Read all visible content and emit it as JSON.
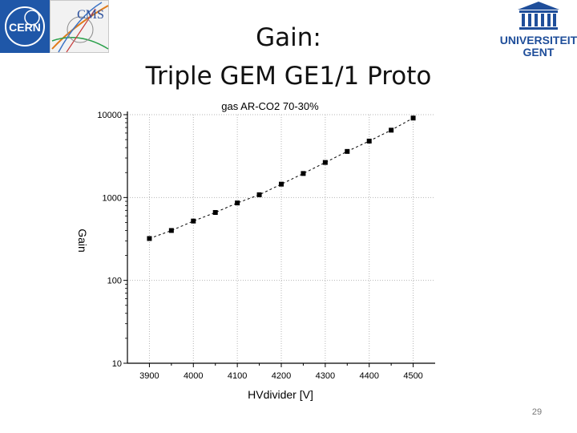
{
  "slide": {
    "title_line1": "Gain:",
    "title_line2": "Triple GEM GE1/1 Proto",
    "page_number": "29"
  },
  "logos": {
    "cern": {
      "text": "CERN",
      "color": "#1f57a8"
    },
    "cms": {
      "text": "CMS"
    },
    "ugent": {
      "line1": "UNIVERSITEIT",
      "line2": "GENT",
      "color": "#1f4e9a"
    }
  },
  "chart_data": {
    "type": "scatter",
    "title": "gas AR-CO2 70-30%",
    "xlabel": "HVdivider [V]",
    "ylabel": "Gain",
    "xlim": [
      3850,
      4550
    ],
    "ylim": [
      10,
      10000
    ],
    "yscale": "log",
    "grid": true,
    "x_ticks": [
      3900,
      4000,
      4100,
      4200,
      4300,
      4400,
      4500
    ],
    "y_ticks": [
      10,
      100,
      1000,
      10000
    ],
    "series": [
      {
        "marker": "square",
        "line": "dashed",
        "color": "#000000",
        "x": [
          3900,
          3950,
          4000,
          4050,
          4100,
          4150,
          4200,
          4250,
          4300,
          4350,
          4400,
          4450,
          4500
        ],
        "y": [
          320,
          400,
          520,
          660,
          860,
          1080,
          1450,
          1950,
          2650,
          3600,
          4800,
          6500,
          9100
        ]
      }
    ]
  }
}
